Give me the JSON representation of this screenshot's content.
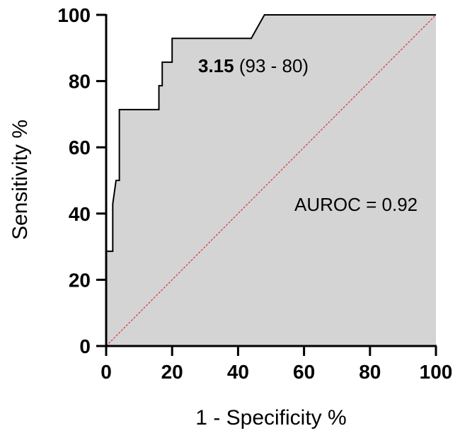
{
  "chart_data": {
    "type": "line",
    "title": "",
    "xlabel": "1 - Specificity %",
    "ylabel": "Sensitivity %",
    "xlim": [
      0,
      100
    ],
    "ylim": [
      0,
      100
    ],
    "xticks": [
      0,
      20,
      40,
      60,
      80,
      100
    ],
    "yticks": [
      0,
      20,
      40,
      60,
      80,
      100
    ],
    "grid": false,
    "area_fill": "#d4d4d4",
    "line_color": "#000000",
    "reference_line_color": "#e03030",
    "series": [
      {
        "x": [
          0,
          0,
          2,
          2,
          2,
          3,
          4,
          4,
          16,
          16,
          17,
          17,
          19,
          19,
          20,
          20,
          44,
          48,
          100
        ],
        "y": [
          0,
          28.6,
          28.6,
          42.9,
          42.9,
          50,
          50,
          71.4,
          71.4,
          78.6,
          78.6,
          85.7,
          85.7,
          85.7,
          85.7,
          92.9,
          92.9,
          100,
          100
        ]
      }
    ],
    "reference_line": {
      "x": [
        0,
        100
      ],
      "y": [
        0,
        100
      ]
    },
    "annotations": {
      "cutoff_value": "3.15",
      "cutoff_detail": " (93 - 80)",
      "auroc": "AUROC = 0.92"
    }
  }
}
